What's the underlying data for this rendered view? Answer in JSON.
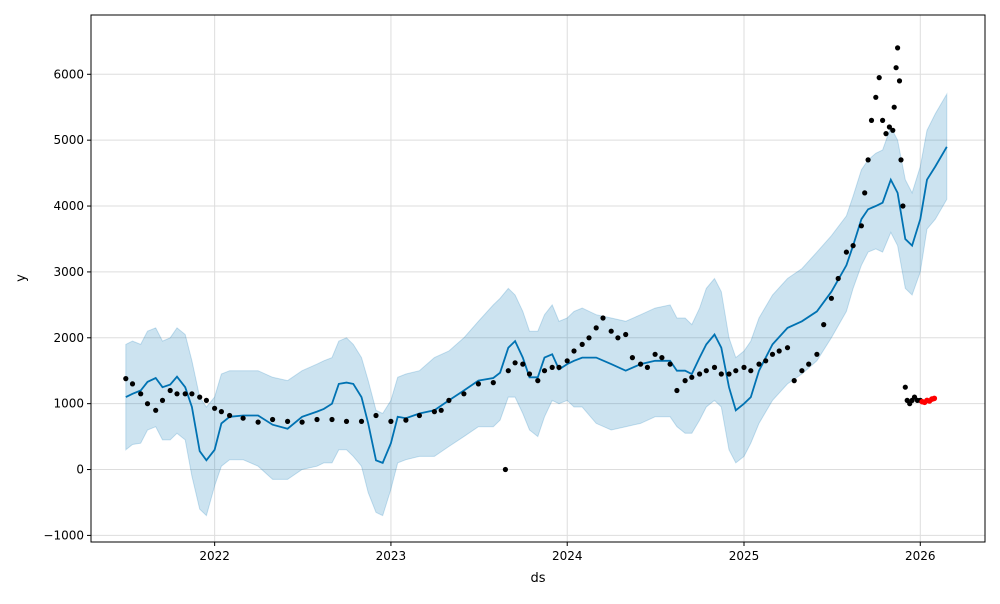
{
  "chart_data": {
    "type": "line",
    "title": "",
    "xlabel": "ds",
    "ylabel": "y",
    "xlim": [
      "2021-04-20",
      "2026-05-15"
    ],
    "ylim": [
      -1100,
      6900
    ],
    "grid": true,
    "x_ticks": [
      "2022",
      "2023",
      "2024",
      "2025",
      "2026"
    ],
    "y_ticks": [
      -1000,
      0,
      1000,
      2000,
      3000,
      4000,
      5000,
      6000
    ],
    "y_tick_labels": [
      "−1000",
      "0",
      "1000",
      "2000",
      "3000",
      "4000",
      "5000",
      "6000"
    ],
    "colors": {
      "forecast_line": "#0072B2",
      "uncertainty_band": "#0072B2",
      "actuals": "#000000",
      "future_actuals": "#FF0000",
      "grid": "#dddddd"
    },
    "forecast": {
      "x": [
        "2021-07-01",
        "2021-07-15",
        "2021-08-01",
        "2021-08-15",
        "2021-09-01",
        "2021-09-15",
        "2021-10-01",
        "2021-10-15",
        "2021-11-01",
        "2021-11-15",
        "2021-12-01",
        "2021-12-15",
        "2022-01-01",
        "2022-01-15",
        "2022-02-01",
        "2022-03-01",
        "2022-04-01",
        "2022-05-01",
        "2022-06-01",
        "2022-07-01",
        "2022-08-01",
        "2022-08-15",
        "2022-09-01",
        "2022-09-15",
        "2022-10-01",
        "2022-10-15",
        "2022-11-01",
        "2022-11-15",
        "2022-12-01",
        "2022-12-15",
        "2023-01-01",
        "2023-01-15",
        "2023-02-01",
        "2023-03-01",
        "2023-04-01",
        "2023-05-01",
        "2023-06-01",
        "2023-07-01",
        "2023-08-01",
        "2023-08-15",
        "2023-09-01",
        "2023-09-15",
        "2023-10-01",
        "2023-10-15",
        "2023-11-01",
        "2023-11-15",
        "2023-12-01",
        "2023-12-15",
        "2024-01-01",
        "2024-01-15",
        "2024-02-01",
        "2024-03-01",
        "2024-04-01",
        "2024-05-01",
        "2024-06-01",
        "2024-07-01",
        "2024-08-01",
        "2024-08-15",
        "2024-09-01",
        "2024-09-15",
        "2024-10-01",
        "2024-10-15",
        "2024-11-01",
        "2024-11-15",
        "2024-12-01",
        "2024-12-15",
        "2025-01-01",
        "2025-01-15",
        "2025-02-01",
        "2025-03-01",
        "2025-04-01",
        "2025-05-01",
        "2025-06-01",
        "2025-07-01",
        "2025-08-01",
        "2025-08-15",
        "2025-09-01",
        "2025-09-15",
        "2025-10-01",
        "2025-10-15",
        "2025-11-01",
        "2025-11-15",
        "2025-12-01",
        "2025-12-15",
        "2026-01-01",
        "2026-01-15",
        "2026-02-01",
        "2026-02-25"
      ],
      "yhat": [
        1100,
        1150,
        1200,
        1330,
        1390,
        1250,
        1290,
        1410,
        1250,
        950,
        280,
        140,
        300,
        700,
        800,
        820,
        820,
        680,
        620,
        800,
        880,
        920,
        1000,
        1300,
        1320,
        1300,
        1100,
        700,
        140,
        100,
        400,
        800,
        780,
        850,
        900,
        1050,
        1200,
        1350,
        1390,
        1470,
        1850,
        1950,
        1700,
        1400,
        1400,
        1700,
        1750,
        1520,
        1600,
        1650,
        1700,
        1700,
        1600,
        1500,
        1600,
        1650,
        1650,
        1500,
        1500,
        1450,
        1700,
        1900,
        2050,
        1850,
        1250,
        900,
        1000,
        1100,
        1500,
        1900,
        2150,
        2250,
        2400,
        2700,
        3100,
        3400,
        3800,
        3950,
        4000,
        4050,
        4400,
        4200,
        3500,
        3400,
        3800,
        4400,
        4600,
        4900
      ],
      "yhat_lower": [
        300,
        380,
        400,
        600,
        650,
        450,
        450,
        550,
        450,
        -100,
        -600,
        -700,
        -250,
        50,
        150,
        150,
        50,
        -150,
        -150,
        0,
        50,
        100,
        100,
        300,
        300,
        200,
        50,
        -350,
        -650,
        -700,
        -300,
        100,
        150,
        200,
        200,
        350,
        500,
        650,
        650,
        750,
        1100,
        1100,
        850,
        600,
        500,
        800,
        1050,
        1000,
        1050,
        950,
        950,
        700,
        600,
        650,
        700,
        800,
        800,
        650,
        550,
        550,
        750,
        950,
        1050,
        950,
        300,
        100,
        200,
        400,
        700,
        1050,
        1300,
        1450,
        1650,
        2000,
        2400,
        2750,
        3100,
        3300,
        3350,
        3300,
        3600,
        3400,
        2750,
        2650,
        3000,
        3650,
        3800,
        4100
      ],
      "yhat_upper": [
        1900,
        1950,
        1900,
        2100,
        2150,
        1950,
        2000,
        2150,
        2050,
        1650,
        1100,
        950,
        1100,
        1450,
        1500,
        1500,
        1500,
        1400,
        1350,
        1500,
        1600,
        1650,
        1700,
        1950,
        2000,
        1900,
        1700,
        1350,
        900,
        850,
        1050,
        1400,
        1450,
        1500,
        1700,
        1800,
        2000,
        2250,
        2500,
        2600,
        2750,
        2650,
        2400,
        2100,
        2100,
        2350,
        2500,
        2250,
        2300,
        2400,
        2450,
        2350,
        2300,
        2250,
        2350,
        2450,
        2500,
        2300,
        2300,
        2200,
        2450,
        2750,
        2900,
        2700,
        2000,
        1700,
        1800,
        1950,
        2300,
        2650,
        2900,
        3050,
        3300,
        3550,
        3850,
        4150,
        4550,
        4700,
        4800,
        4850,
        5200,
        5000,
        4400,
        4200,
        4600,
        5150,
        5400,
        5700
      ]
    },
    "actuals": {
      "x": [
        "2021-07-01",
        "2021-07-15",
        "2021-08-01",
        "2021-08-15",
        "2021-09-01",
        "2021-09-15",
        "2021-10-01",
        "2021-10-15",
        "2021-11-01",
        "2021-11-15",
        "2021-12-01",
        "2021-12-15",
        "2022-01-01",
        "2022-01-15",
        "2022-02-01",
        "2022-03-01",
        "2022-04-01",
        "2022-05-01",
        "2022-06-01",
        "2022-07-01",
        "2022-08-01",
        "2022-09-01",
        "2022-10-01",
        "2022-11-01",
        "2022-12-01",
        "2023-01-01",
        "2023-02-01",
        "2023-03-01",
        "2023-04-01",
        "2023-04-15",
        "2023-05-01",
        "2023-06-01",
        "2023-07-01",
        "2023-08-01",
        "2023-08-26",
        "2023-09-01",
        "2023-09-15",
        "2023-10-01",
        "2023-10-15",
        "2023-11-01",
        "2023-11-15",
        "2023-12-01",
        "2023-12-15",
        "2024-01-01",
        "2024-01-15",
        "2024-02-01",
        "2024-02-15",
        "2024-03-01",
        "2024-03-15",
        "2024-04-01",
        "2024-04-15",
        "2024-05-01",
        "2024-05-15",
        "2024-06-01",
        "2024-06-15",
        "2024-07-01",
        "2024-07-15",
        "2024-08-01",
        "2024-08-15",
        "2024-09-01",
        "2024-09-15",
        "2024-10-01",
        "2024-10-15",
        "2024-11-01",
        "2024-11-15",
        "2024-12-01",
        "2024-12-15",
        "2025-01-01",
        "2025-01-15",
        "2025-02-01",
        "2025-02-15",
        "2025-03-01",
        "2025-03-15",
        "2025-04-01",
        "2025-04-15",
        "2025-05-01",
        "2025-05-15",
        "2025-06-01",
        "2025-06-15",
        "2025-07-01",
        "2025-07-15",
        "2025-08-01",
        "2025-08-15",
        "2025-09-01",
        "2025-09-08",
        "2025-09-15",
        "2025-09-22",
        "2025-10-01",
        "2025-10-08",
        "2025-10-15",
        "2025-10-22",
        "2025-10-29",
        "2025-11-05",
        "2025-11-08",
        "2025-11-12",
        "2025-11-15",
        "2025-11-19",
        "2025-11-22",
        "2025-11-26",
        "2025-12-01",
        "2025-12-05",
        "2025-12-10",
        "2025-12-15",
        "2025-12-20",
        "2025-12-26",
        "2026-01-01"
      ],
      "y": [
        1380,
        1300,
        1150,
        1000,
        900,
        1050,
        1200,
        1150,
        1150,
        1150,
        1100,
        1050,
        930,
        880,
        820,
        780,
        720,
        760,
        730,
        720,
        760,
        760,
        730,
        730,
        820,
        730,
        750,
        820,
        880,
        900,
        1050,
        1150,
        1300,
        1320,
        0,
        1500,
        1620,
        1600,
        1450,
        1350,
        1500,
        1550,
        1550,
        1650,
        1800,
        1900,
        2000,
        2150,
        2300,
        2100,
        2000,
        2050,
        1700,
        1600,
        1550,
        1750,
        1700,
        1600,
        1200,
        1350,
        1400,
        1450,
        1500,
        1550,
        1450,
        1450,
        1500,
        1550,
        1500,
        1600,
        1650,
        1750,
        1800,
        1850,
        1350,
        1500,
        1600,
        1750,
        2200,
        2600,
        2900,
        3300,
        3400,
        3700,
        4200,
        4700,
        5300,
        5650,
        5950,
        5300,
        5100,
        5200,
        5150,
        5500,
        6100,
        6400,
        5900,
        4700,
        4000,
        1250,
        1050,
        1000,
        1050,
        1100,
        1050,
        1050
      ],
      "outlier_note": ""
    },
    "future_actuals": {
      "x": [
        "2026-01-05",
        "2026-01-10",
        "2026-01-15",
        "2026-01-20",
        "2026-01-25",
        "2026-01-30"
      ],
      "y": [
        1030,
        1020,
        1050,
        1040,
        1070,
        1080
      ]
    }
  }
}
